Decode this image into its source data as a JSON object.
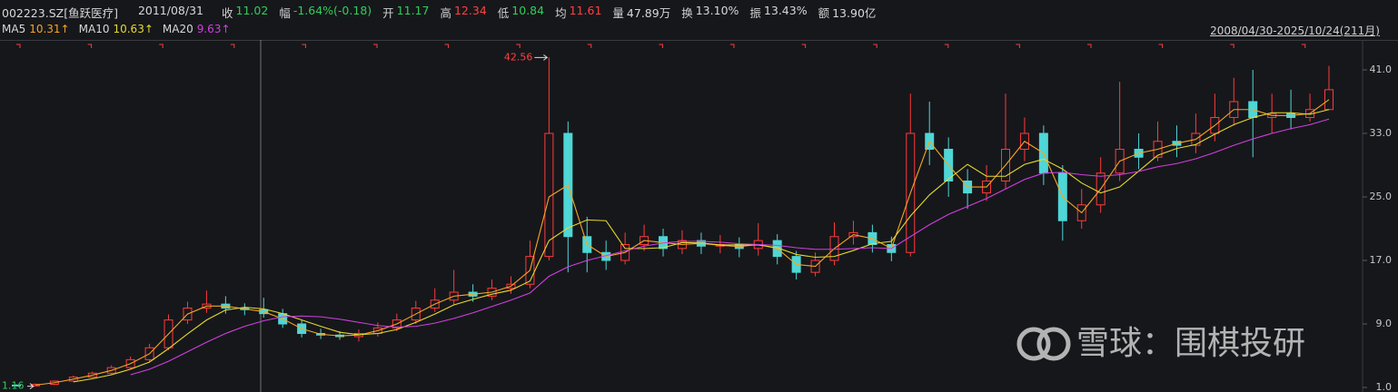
{
  "header": {
    "code": "002223.SZ[鱼跃医疗]",
    "date": "2011/08/31",
    "quote": [
      {
        "label": "收",
        "value": "11.02",
        "color": "#2fcf5a"
      },
      {
        "label": "幅",
        "value": "-1.64%(-0.18)",
        "color": "#2fcf5a"
      },
      {
        "label": "开",
        "value": "11.17",
        "color": "#2fcf5a"
      },
      {
        "label": "高",
        "value": "12.34",
        "color": "#ff4040"
      },
      {
        "label": "低",
        "value": "10.84",
        "color": "#2fcf5a"
      },
      {
        "label": "均",
        "value": "11.61",
        "color": "#ff4040"
      },
      {
        "label": "量",
        "value": "47.89万",
        "color": "#d8d8d8"
      },
      {
        "label": "换",
        "value": "13.10%",
        "color": "#d8d8d8"
      },
      {
        "label": "振",
        "value": "13.43%",
        "color": "#d8d8d8"
      },
      {
        "label": "额",
        "value": "13.90亿",
        "color": "#d8d8d8"
      }
    ],
    "ma_legend": [
      "10.31↑",
      "10.63↑",
      "9.63↑"
    ],
    "range": "2008/04/30-2025/10/24(211月)"
  },
  "watermark": "雪球：围棋投研",
  "chart_data": {
    "type": "candlestick",
    "up_color": "#ff3b3b",
    "down_color": "#4fd6d6",
    "ylim": [
      0.43,
      44.77
    ],
    "yticks": [
      {
        "value": 1,
        "label": "1.0"
      },
      {
        "value": 9,
        "label": "9.0"
      },
      {
        "value": 17,
        "label": "17.0"
      },
      {
        "value": 25,
        "label": "25.0"
      },
      {
        "value": 33,
        "label": "33.0"
      },
      {
        "value": 41,
        "label": "41.0"
      }
    ],
    "open": [
      1.3,
      1.2,
      1.4,
      1.8,
      2.3,
      2.8,
      3.5,
      4.5,
      6,
      9.5,
      11,
      11.5,
      11,
      10.8,
      10.3,
      9,
      7.8,
      7.6,
      7.4,
      7.8,
      8.5,
      9.5,
      11,
      12,
      13,
      12.5,
      13.5,
      14,
      17.5,
      33,
      20,
      18,
      17,
      19,
      20,
      18.5,
      19.5,
      18.8,
      19,
      18.5,
      19.5,
      17.5,
      15.5,
      17,
      20,
      20.5,
      19,
      18,
      33,
      31,
      27,
      25.5,
      27,
      31,
      33,
      28,
      22,
      24,
      28,
      31,
      30,
      32,
      31.5,
      33,
      35,
      37,
      35,
      35.5,
      35,
      36
    ],
    "high": [
      1.4,
      1.5,
      1.9,
      2.5,
      3.0,
      3.8,
      4.9,
      6.5,
      10.2,
      11.8,
      13.2,
      12.5,
      11.6,
      12.3,
      10.9,
      9.5,
      8.4,
      8.1,
      8.3,
      9.2,
      10.3,
      11.9,
      13.5,
      15.8,
      14.0,
      14.6,
      15.0,
      19.5,
      42.56,
      34.5,
      22.5,
      19.5,
      20.5,
      21.5,
      21.0,
      20.8,
      20.5,
      20.2,
      19.9,
      21.7,
      20.3,
      18.2,
      18.0,
      21.8,
      22.0,
      21.5,
      20.0,
      38.0,
      37.0,
      32.5,
      28.5,
      29.0,
      38.0,
      35.0,
      34.0,
      29.0,
      26.0,
      30.0,
      39.5,
      33.0,
      34.5,
      34.0,
      35.5,
      38.0,
      40.0,
      41.0,
      38.0,
      38.5,
      38.0,
      41.5
    ],
    "low": [
      1.2,
      1.16,
      1.3,
      1.7,
      2.2,
      2.6,
      3.3,
      4.2,
      5.7,
      9.0,
      10.4,
      10.3,
      10.1,
      9.8,
      8.5,
      7.3,
      7.1,
      7.0,
      6.8,
      7.4,
      8.1,
      9.0,
      10.5,
      11.4,
      11.8,
      12.0,
      12.8,
      13.5,
      17.0,
      15.5,
      15.5,
      15.8,
      16.5,
      18.2,
      17.5,
      17.8,
      17.8,
      17.9,
      17.4,
      17.6,
      16.5,
      14.6,
      15.0,
      16.4,
      19.0,
      18.0,
      16.9,
      17.5,
      29.0,
      25.0,
      23.5,
      24.5,
      26.0,
      29.5,
      26.5,
      19.5,
      21.0,
      23.0,
      27.0,
      28.5,
      29.5,
      30.0,
      30.5,
      32.0,
      34.0,
      30.0,
      33.0,
      33.5,
      34.5,
      36.0
    ],
    "close": [
      1.2,
      1.4,
      1.8,
      2.3,
      2.8,
      3.5,
      4.5,
      6,
      9.5,
      11,
      11.5,
      11,
      10.8,
      10.3,
      9,
      7.8,
      7.6,
      7.4,
      7.8,
      8.5,
      9.5,
      11,
      12,
      13,
      12.5,
      13.5,
      14,
      17.5,
      33,
      20,
      18,
      17,
      19,
      20,
      18.5,
      19.5,
      18.8,
      19,
      18.5,
      19.5,
      17.5,
      15.5,
      17,
      20,
      20.5,
      19,
      18,
      33,
      31,
      27,
      25.5,
      27,
      31,
      33,
      28,
      22,
      24,
      28,
      31,
      30,
      32,
      31.5,
      33,
      35,
      37,
      35,
      35.5,
      35,
      36,
      38.5
    ],
    "ma": [
      {
        "name": "MA5",
        "color": "#f5a623",
        "values": [
          null,
          1.3,
          1.6,
          2.05,
          2.55,
          3.15,
          4.0,
          5.25,
          7.75,
          10.25,
          11.25,
          11.25,
          10.9,
          10.55,
          9.65,
          8.4,
          7.7,
          7.5,
          7.6,
          8.15,
          9.0,
          10.25,
          11.5,
          12.5,
          12.75,
          13.0,
          13.75,
          15.75,
          25,
          26.5,
          19,
          17.5,
          18,
          19.5,
          19.25,
          19,
          19.15,
          18.9,
          18.75,
          19,
          18.5,
          16.5,
          16.25,
          18.5,
          20.25,
          19.75,
          18.5,
          25.5,
          32,
          29,
          26.25,
          26.25,
          29,
          32,
          30.5,
          25,
          23,
          26,
          29.5,
          30.5,
          31,
          31.75,
          32.25,
          34,
          36,
          36,
          35.25,
          35.25,
          35.5,
          37.25
        ]
      },
      {
        "name": "MA10",
        "color": "#e6d92e",
        "values": [
          null,
          null,
          null,
          1.7,
          2.1,
          2.6,
          3.3,
          4.2,
          5.9,
          7.75,
          9.5,
          10.75,
          11.1,
          10.9,
          10.3,
          9.5,
          8.7,
          7.95,
          7.65,
          7.8,
          8.3,
          9.2,
          10.25,
          11.4,
          12.1,
          12.75,
          13.25,
          14.4,
          19.5,
          21.1,
          22.1,
          22,
          18.5,
          18.5,
          18.6,
          19.25,
          19.2,
          18.95,
          18.95,
          18.95,
          18.6,
          17.75,
          17.4,
          17.5,
          18.25,
          19.1,
          19.4,
          22.6,
          25.25,
          27.25,
          29.1,
          27.6,
          27.6,
          29.1,
          29.75,
          28.5,
          26.75,
          25.5,
          26.25,
          28.25,
          30.25,
          31.1,
          31.6,
          32.9,
          34.1,
          35,
          35.6,
          35.6,
          35.4,
          36
        ]
      },
      {
        "name": "MA20",
        "color": "#d13fe0",
        "values": [
          null,
          null,
          null,
          null,
          null,
          null,
          2.6,
          3.3,
          4.3,
          5.5,
          6.7,
          7.8,
          8.7,
          9.4,
          9.9,
          10.0,
          9.9,
          9.6,
          9.2,
          8.8,
          8.6,
          8.7,
          9.1,
          9.7,
          10.4,
          11.2,
          12.0,
          12.9,
          15.0,
          16.2,
          17.0,
          17.6,
          18.2,
          18.8,
          19.2,
          19.4,
          19.4,
          19.3,
          19.1,
          19.0,
          18.9,
          18.6,
          18.4,
          18.4,
          18.5,
          18.6,
          18.5,
          20.0,
          21.5,
          22.8,
          23.8,
          24.8,
          26.0,
          27.2,
          28.0,
          28.1,
          27.8,
          27.6,
          27.8,
          28.2,
          28.8,
          29.2,
          29.8,
          30.6,
          31.5,
          32.3,
          33.0,
          33.6,
          34.1,
          34.8
        ]
      }
    ]
  }
}
